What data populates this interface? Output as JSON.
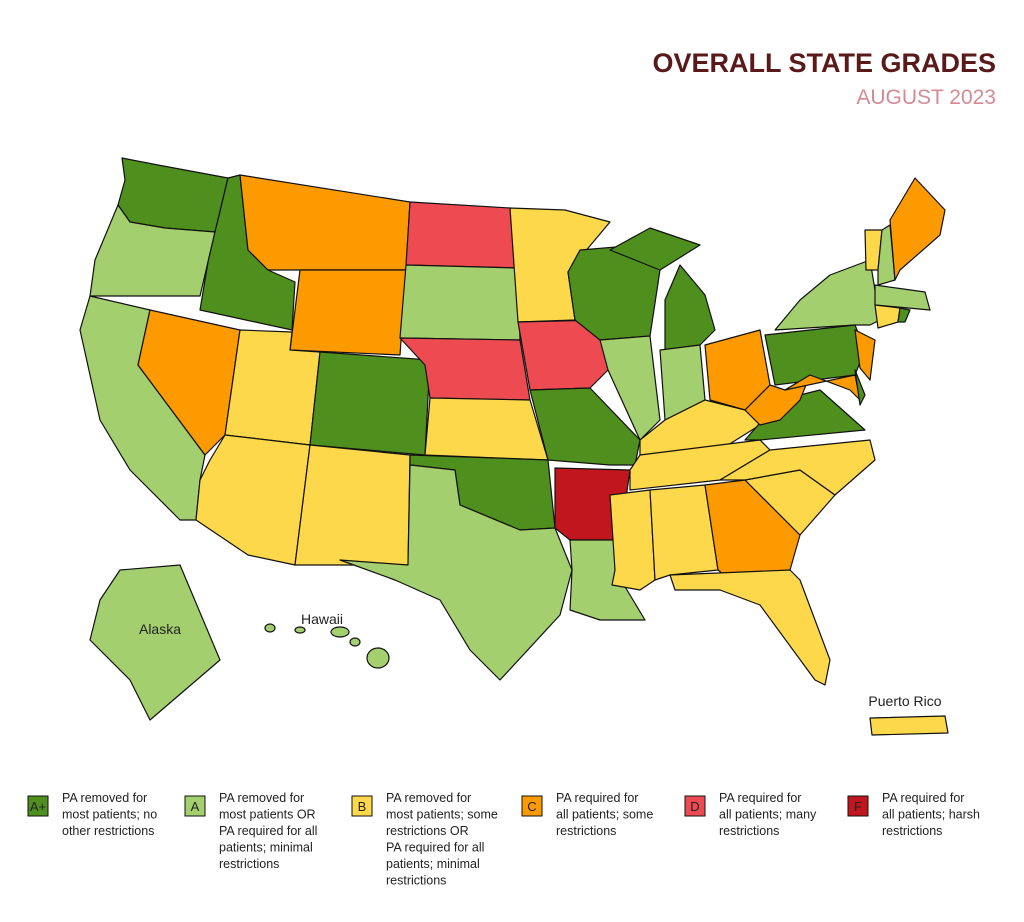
{
  "header": {
    "title": "OVERALL STATE GRADES",
    "subtitle": "AUGUST 2023"
  },
  "map_labels": {
    "alaska": "Alaska",
    "hawaii": "Hawaii",
    "puerto_rico": "Puerto Rico"
  },
  "legend": [
    {
      "grade": "A+",
      "color": "#4f8f1e",
      "lines": [
        "PA removed for",
        "most patients; no",
        "other restrictions"
      ]
    },
    {
      "grade": "A",
      "color": "#a3cf6e",
      "lines": [
        "PA removed for",
        "most patients OR",
        "PA required for all",
        "patients; minimal",
        "restrictions"
      ]
    },
    {
      "grade": "B",
      "color": "#fdd84a",
      "lines": [
        "PA removed for",
        "most patients; some",
        "restrictions OR",
        "PA required for all",
        "patients; minimal",
        "restrictions"
      ]
    },
    {
      "grade": "C",
      "color": "#fd9a00",
      "lines": [
        "PA required for",
        "all patients; some",
        "restrictions"
      ]
    },
    {
      "grade": "D",
      "color": "#ee4a52",
      "lines": [
        "PA required for",
        "all patients; many",
        "restrictions"
      ]
    },
    {
      "grade": "F",
      "color": "#c2161f",
      "lines": [
        "PA required for",
        "all patients; harsh",
        "restrictions"
      ]
    }
  ]
}
